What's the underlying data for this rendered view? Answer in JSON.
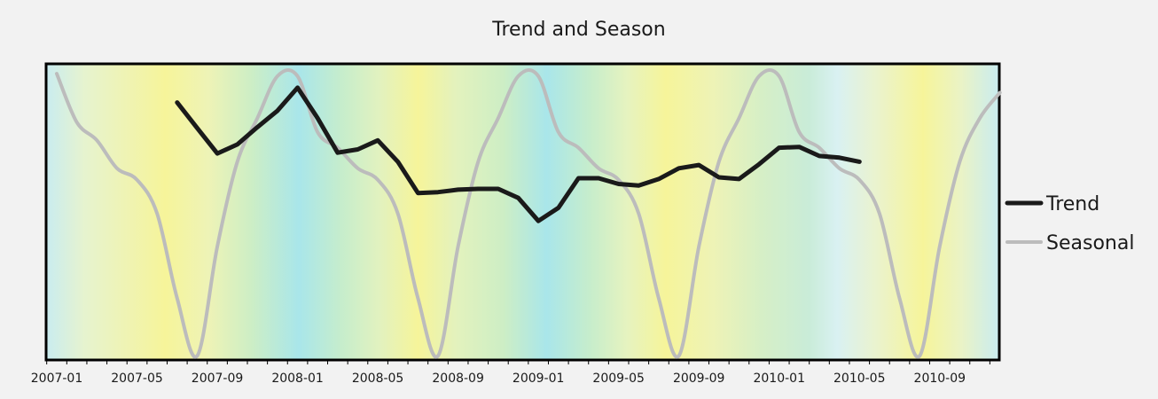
{
  "chart_data": {
    "type": "line",
    "title": "Trend and Season",
    "xlabel": "",
    "ylabel": "",
    "x_tick_labels": [
      "2007-01",
      "2007-05",
      "2007-09",
      "2008-01",
      "2008-05",
      "2008-09",
      "2009-01",
      "2009-05",
      "2009-09",
      "2010-01",
      "2010-05",
      "2010-09"
    ],
    "grid": false,
    "legend_position": "right",
    "background": "vertical color gradient cycling cyan - yellow by season",
    "series": [
      {
        "name": "Trend",
        "color": "#1a1a1a",
        "x": [
          "2007-07",
          "2007-08",
          "2007-09",
          "2007-10",
          "2007-11",
          "2007-12",
          "2008-01",
          "2008-02",
          "2008-03",
          "2008-04",
          "2008-05",
          "2008-06",
          "2008-07",
          "2008-08",
          "2008-09",
          "2008-10",
          "2008-11",
          "2008-12",
          "2009-01",
          "2009-02",
          "2009-03",
          "2009-04",
          "2009-05",
          "2009-06",
          "2009-07",
          "2009-08",
          "2009-09",
          "2009-10",
          "2009-11",
          "2009-12",
          "2010-01",
          "2010-02",
          "2010-03",
          "2010-04",
          "2010-05"
        ],
        "values": [
          1.48,
          1.17,
          0.86,
          0.97,
          1.18,
          1.38,
          1.66,
          1.29,
          0.87,
          0.91,
          1.02,
          0.76,
          0.38,
          0.39,
          0.42,
          0.43,
          0.43,
          0.32,
          0.04,
          0.2,
          0.56,
          0.56,
          0.49,
          0.47,
          0.55,
          0.68,
          0.72,
          0.57,
          0.55,
          0.73,
          0.93,
          0.94,
          0.83,
          0.81,
          0.76
        ]
      },
      {
        "name": "Seasonal",
        "color": "#bcbcbc",
        "x": [
          "2007-01",
          "2007-02",
          "2007-03",
          "2007-04",
          "2007-05",
          "2007-06",
          "2007-07",
          "2007-08",
          "2007-09",
          "2007-10",
          "2007-11",
          "2007-12",
          "2008-01",
          "2008-02",
          "2008-03",
          "2008-04",
          "2008-05",
          "2008-06",
          "2008-07",
          "2008-08",
          "2008-09",
          "2008-10",
          "2008-11",
          "2008-12",
          "2009-01",
          "2009-02",
          "2009-03",
          "2009-04",
          "2009-05",
          "2009-06",
          "2009-07",
          "2009-08",
          "2009-09",
          "2009-10",
          "2009-11",
          "2009-12",
          "2010-01",
          "2010-02",
          "2010-03",
          "2010-04",
          "2010-05",
          "2010-06",
          "2010-07",
          "2010-08",
          "2010-09",
          "2010-10",
          "2010-11",
          "2010-12"
        ],
        "values": [
          1.83,
          1.24,
          1.02,
          0.68,
          0.54,
          0.13,
          -0.9,
          -1.6,
          -0.27,
          0.76,
          1.29,
          1.8,
          1.8,
          1.12,
          0.93,
          0.68,
          0.54,
          0.13,
          -0.9,
          -1.6,
          -0.27,
          0.76,
          1.29,
          1.8,
          1.8,
          1.12,
          0.93,
          0.68,
          0.54,
          0.13,
          -0.9,
          -1.6,
          -0.27,
          0.76,
          1.29,
          1.8,
          1.8,
          1.12,
          0.93,
          0.68,
          0.54,
          0.13,
          -0.9,
          -1.6,
          -0.27,
          0.76,
          1.29,
          1.6
        ]
      }
    ],
    "ylim": [
      -1.65,
      1.95
    ]
  }
}
